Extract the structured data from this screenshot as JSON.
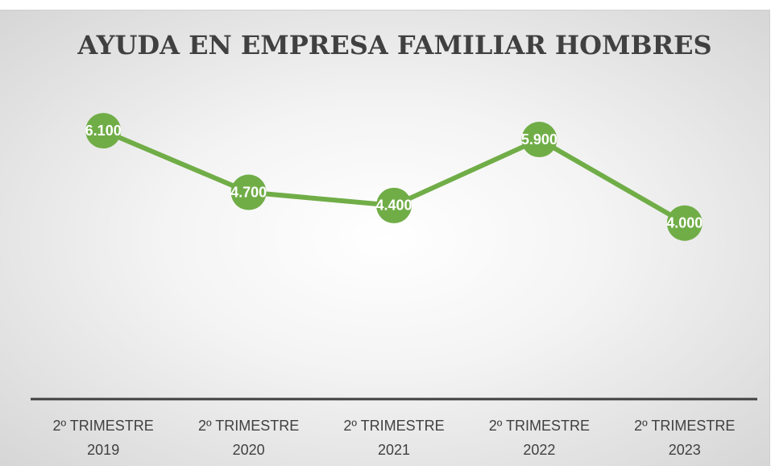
{
  "chart_data": {
    "type": "line",
    "title": "AYUDA EN EMPRESA FAMILIAR HOMBRES",
    "categories": [
      "2º TRIMESTRE 2019",
      "2º TRIMESTRE 2020",
      "2º TRIMESTRE 2021",
      "2º TRIMESTRE 2022",
      "2º TRIMESTRE 2023"
    ],
    "series": [
      {
        "name": "AYUDA EN EMPRESA FAMILIAR HOMBRES",
        "color": "#70ad47",
        "values": [
          6100,
          4700,
          4400,
          5900,
          4000
        ],
        "value_labels": [
          "6.100",
          "4.700",
          "4.400",
          "5.900",
          "4.000"
        ]
      }
    ],
    "ylim": [
      0,
      7000
    ]
  }
}
